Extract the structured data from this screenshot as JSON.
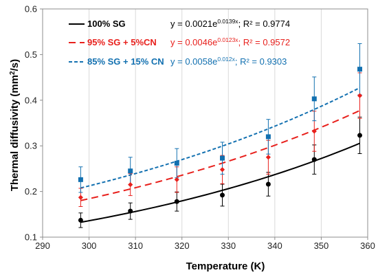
{
  "chart_data": {
    "type": "scatter",
    "xlabel": "Temperature (K)",
    "ylabel_main": "Thermal diffusivity (mm",
    "ylabel_sup": "2",
    "ylabel_end": "/s)",
    "xlim": [
      290,
      360
    ],
    "ylim": [
      0.1,
      0.6
    ],
    "xticks": [
      290,
      300,
      310,
      320,
      330,
      340,
      350,
      360
    ],
    "yticks": [
      0.1,
      0.2,
      0.3,
      0.4,
      0.5,
      0.6
    ],
    "xtick_labels": [
      "290",
      "300",
      "310",
      "320",
      "330",
      "340",
      "350",
      "360"
    ],
    "ytick_labels": [
      "0.1",
      "0.2",
      "0.3",
      "0.4",
      "0.5",
      "0.6"
    ],
    "grid": "vertical",
    "legend_position": "top-left",
    "series": [
      {
        "name": "100% SG",
        "color": "#000000",
        "marker": "circle",
        "line_style": "solid",
        "x": [
          298.2,
          308.9,
          318.9,
          328.7,
          338.6,
          348.5,
          358.3
        ],
        "y": [
          0.137,
          0.157,
          0.178,
          0.192,
          0.216,
          0.27,
          0.323
        ],
        "err": [
          0.016,
          0.018,
          0.021,
          0.024,
          0.026,
          0.032,
          0.04
        ],
        "fit": {
          "a": 0.0021,
          "b": 0.0139,
          "x_range": [
            298.2,
            358.3
          ]
        },
        "eq_y": "y = 0.0021e",
        "eq_exp": "0.0139x",
        "eq_r2": "; R² = 0.9774"
      },
      {
        "name": "95% SG + 5%CN",
        "color": "#e8201c",
        "marker": "diamond",
        "line_style": "dashed-long",
        "x": [
          298.2,
          308.9,
          318.9,
          328.7,
          338.6,
          348.5,
          358.3
        ],
        "y": [
          0.187,
          0.215,
          0.226,
          0.248,
          0.275,
          0.332,
          0.41
        ],
        "err": [
          0.02,
          0.024,
          0.028,
          0.031,
          0.037,
          0.044,
          0.05
        ],
        "fit": {
          "a": 0.0046,
          "b": 0.0123,
          "x_range": [
            298.2,
            358.3
          ]
        },
        "eq_y": "y = 0.0046e",
        "eq_exp": "0.0123x",
        "eq_r2": "; R² = 0.9572"
      },
      {
        "name": "85% SG + 15% CN",
        "color": "#1270b0",
        "marker": "square",
        "line_style": "dashed-short",
        "x": [
          298.2,
          308.9,
          318.9,
          328.7,
          338.6,
          348.5,
          358.3
        ],
        "y": [
          0.226,
          0.245,
          0.262,
          0.273,
          0.32,
          0.403,
          0.468
        ],
        "err": [
          0.028,
          0.03,
          0.032,
          0.035,
          0.038,
          0.048,
          0.056
        ],
        "fit": {
          "a": 0.0058,
          "b": 0.012,
          "x_range": [
            298.2,
            358.3
          ]
        },
        "eq_y": "y = 0.0058e",
        "eq_exp": "0.012x",
        "eq_r2": "; R² = 0.9303"
      }
    ]
  }
}
